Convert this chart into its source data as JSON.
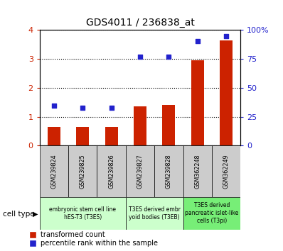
{
  "title": "GDS4011 / 236838_at",
  "samples": [
    "GSM239824",
    "GSM239825",
    "GSM239826",
    "GSM239827",
    "GSM239828",
    "GSM362248",
    "GSM362249"
  ],
  "bar_values": [
    0.65,
    0.65,
    0.65,
    1.35,
    1.4,
    2.95,
    3.65
  ],
  "scatter_values_left": [
    1.38,
    1.32,
    1.32,
    3.07,
    3.08,
    3.62,
    3.78
  ],
  "bar_color": "#cc2200",
  "scatter_color": "#2222cc",
  "ylim_left": [
    0,
    4
  ],
  "yticks_left": [
    0,
    1,
    2,
    3,
    4
  ],
  "ytick_labels_right": [
    "0",
    "25",
    "50",
    "75",
    "100%"
  ],
  "ytick_vals_right": [
    0,
    25,
    50,
    75,
    100
  ],
  "cell_type_groups": [
    {
      "label": "embryonic stem cell line\nhES-T3 (T3ES)",
      "span": [
        0,
        2
      ],
      "color": "#ccffcc"
    },
    {
      "label": "T3ES derived embr\nyoid bodies (T3EB)",
      "span": [
        3,
        4
      ],
      "color": "#ccffcc"
    },
    {
      "label": "T3ES derived\npancreatic islet-like\ncells (T3pi)",
      "span": [
        5,
        6
      ],
      "color": "#77ee77"
    }
  ],
  "legend_bar_label": "transformed count",
  "legend_scatter_label": "percentile rank within the sample",
  "cell_type_label": "cell type",
  "xlabel_tick_bg": "#cccccc",
  "plot_bg": "#ffffff",
  "bar_width": 0.45
}
